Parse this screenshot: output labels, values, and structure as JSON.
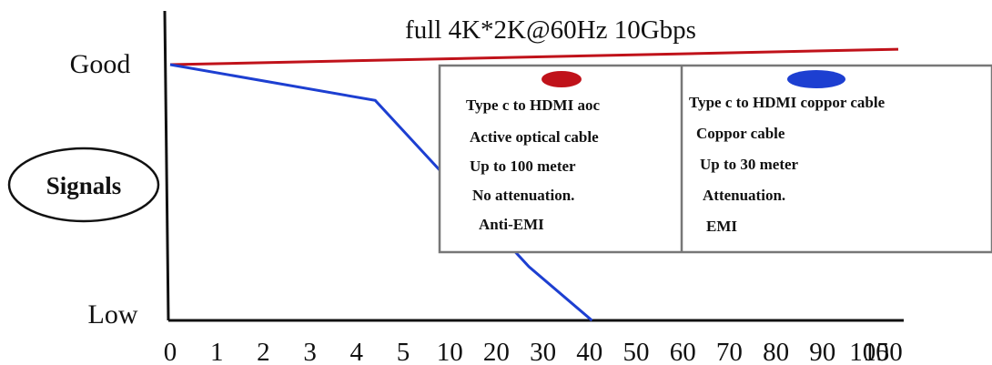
{
  "chart_data": {
    "type": "line",
    "title": "full 4K*2K@60Hz 10Gbps",
    "ylabel": "Signals",
    "y_ticks": [
      "Good",
      "Low"
    ],
    "x_ticks": [
      "0",
      "1",
      "2",
      "3",
      "4",
      "5",
      "10",
      "20",
      "30",
      "40",
      "50",
      "60",
      "70",
      "80",
      "90",
      "100",
      "150"
    ],
    "ylim": [
      0,
      1
    ],
    "grid": false,
    "legend_placement": "top-right",
    "series": [
      {
        "marker": "red-ellipse",
        "color": "#c0121a",
        "x_index": [
          0,
          16
        ],
        "y": [
          1.0,
          1.06
        ],
        "legend_lines": [
          "Type c to HDMI aoc",
          "Active optical cable",
          "Up to 100 meter",
          "No attenuation.",
          "Anti-EMI"
        ]
      },
      {
        "marker": "blue-ellipse",
        "color": "#1d3fd1",
        "x_index": [
          0,
          4.4,
          7.7,
          9.05
        ],
        "y": [
          1.0,
          0.86,
          0.21,
          0.0
        ],
        "legend_lines": [
          "Type c to HDMI coppor cable",
          "Coppor cable",
          "Up to 30 meter",
          "Attenuation.",
          "EMI"
        ]
      }
    ]
  }
}
